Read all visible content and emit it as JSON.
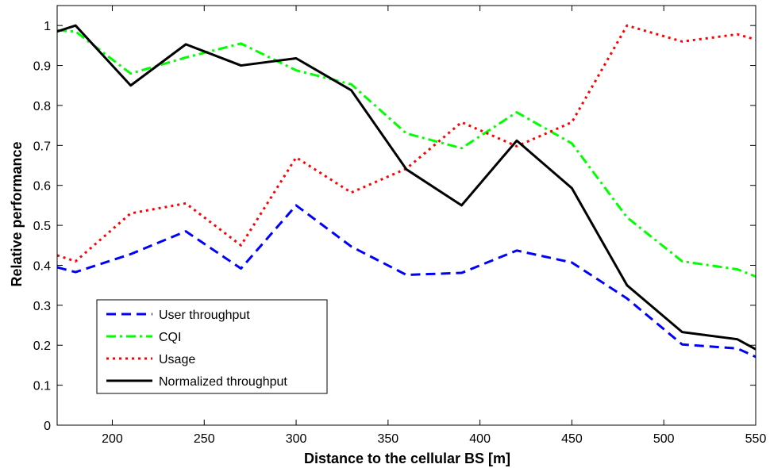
{
  "chart_data": {
    "type": "line",
    "xlabel": "Distance to the cellular BS [m]",
    "ylabel": "Relative performance",
    "xlim": [
      170,
      550
    ],
    "ylim": [
      0,
      1.05
    ],
    "xticks": [
      200,
      250,
      300,
      350,
      400,
      450,
      500,
      550
    ],
    "yticks": [
      0,
      0.1,
      0.2,
      0.3,
      0.4,
      0.5,
      0.6,
      0.7,
      0.8,
      0.9,
      1
    ],
    "x": [
      170,
      180,
      210,
      240,
      270,
      300,
      330,
      360,
      390,
      420,
      450,
      480,
      510,
      540,
      550
    ],
    "series": [
      {
        "name": "User throughput",
        "color": "#0000ff",
        "dash": "dashed",
        "values": [
          0.395,
          0.383,
          0.428,
          0.485,
          0.392,
          0.55,
          0.447,
          0.376,
          0.381,
          0.437,
          0.407,
          0.317,
          0.202,
          0.192,
          0.171
        ]
      },
      {
        "name": "CQI",
        "color": "#00ff00",
        "dash": "dashdot",
        "values": [
          0.988,
          0.985,
          0.88,
          0.92,
          0.955,
          0.888,
          0.853,
          0.73,
          0.693,
          0.783,
          0.705,
          0.52,
          0.41,
          0.39,
          0.372
        ]
      },
      {
        "name": "Usage",
        "color": "#ff0000",
        "dash": "dotted",
        "values": [
          0.425,
          0.41,
          0.53,
          0.555,
          0.45,
          0.67,
          0.582,
          0.642,
          0.758,
          0.698,
          0.758,
          1.0,
          0.96,
          0.978,
          0.965
        ]
      },
      {
        "name": "Normalized throughput",
        "color": "#000000",
        "dash": "solid",
        "values": [
          0.985,
          1.0,
          0.85,
          0.953,
          0.9,
          0.918,
          0.838,
          0.64,
          0.55,
          0.712,
          0.593,
          0.35,
          0.233,
          0.215,
          0.19
        ]
      }
    ],
    "legend_position": "bottom-left",
    "grid": false
  }
}
